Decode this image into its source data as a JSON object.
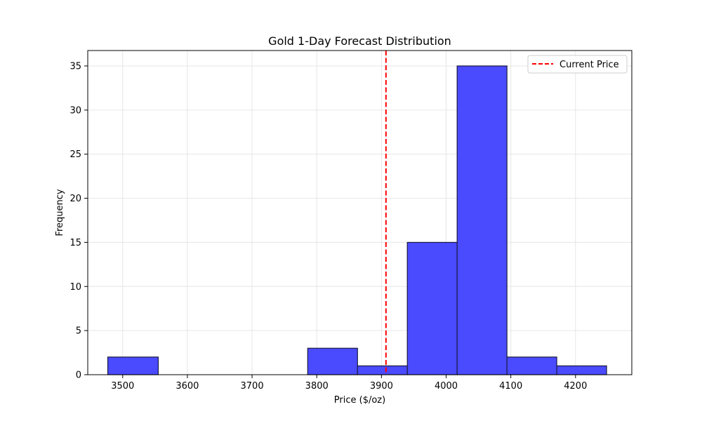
{
  "chart_data": {
    "type": "bar",
    "title": "Gold 1-Day Forecast Distribution",
    "xlabel": "Price ($/oz)",
    "ylabel": "Frequency",
    "xlim": [
      3446,
      4287
    ],
    "ylim": [
      0,
      36.75
    ],
    "xticks": [
      3500,
      3600,
      3700,
      3800,
      3900,
      4000,
      4100,
      4200
    ],
    "yticks": [
      0,
      5,
      10,
      15,
      20,
      25,
      30,
      35
    ],
    "bins": [
      {
        "start": 3477,
        "end": 3555,
        "count": 2
      },
      {
        "start": 3555,
        "end": 3632,
        "count": 0
      },
      {
        "start": 3632,
        "end": 3709,
        "count": 0
      },
      {
        "start": 3709,
        "end": 3786,
        "count": 0
      },
      {
        "start": 3786,
        "end": 3863,
        "count": 3
      },
      {
        "start": 3863,
        "end": 3940,
        "count": 1
      },
      {
        "start": 3940,
        "end": 4017,
        "count": 15
      },
      {
        "start": 4017,
        "end": 4094,
        "count": 35
      },
      {
        "start": 4094,
        "end": 4171,
        "count": 2
      },
      {
        "start": 4171,
        "end": 4248,
        "count": 1
      }
    ],
    "bar_color": "#4a4aff",
    "bar_edge_color": "#1a1a40",
    "reference_line": {
      "label": "Current Price",
      "x": 3907,
      "color": "#ff0000",
      "style": "dashed"
    },
    "grid": true,
    "legend_position": "top-right"
  }
}
